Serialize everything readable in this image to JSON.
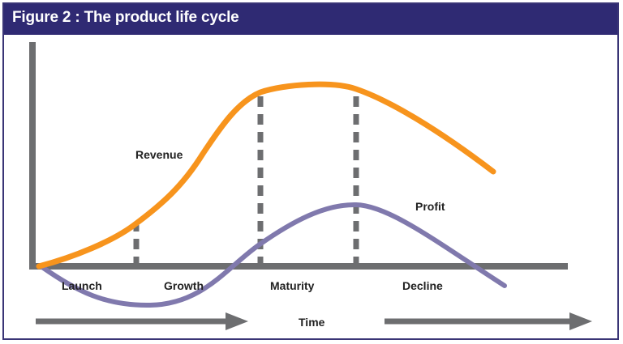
{
  "figure": {
    "title": "Figure 2 : The product life cycle"
  },
  "curves": {
    "revenue_label": "Revenue",
    "profit_label": "Profit"
  },
  "stages": [
    "Launch",
    "Growth",
    "Maturity",
    "Decline"
  ],
  "axis": {
    "time_label": "Time"
  },
  "colors": {
    "header": "#2f2a73",
    "revenue": "#f7941d",
    "profit": "#8079ad",
    "axis": "#6d6e70",
    "dashes": "#6d6e70"
  }
}
